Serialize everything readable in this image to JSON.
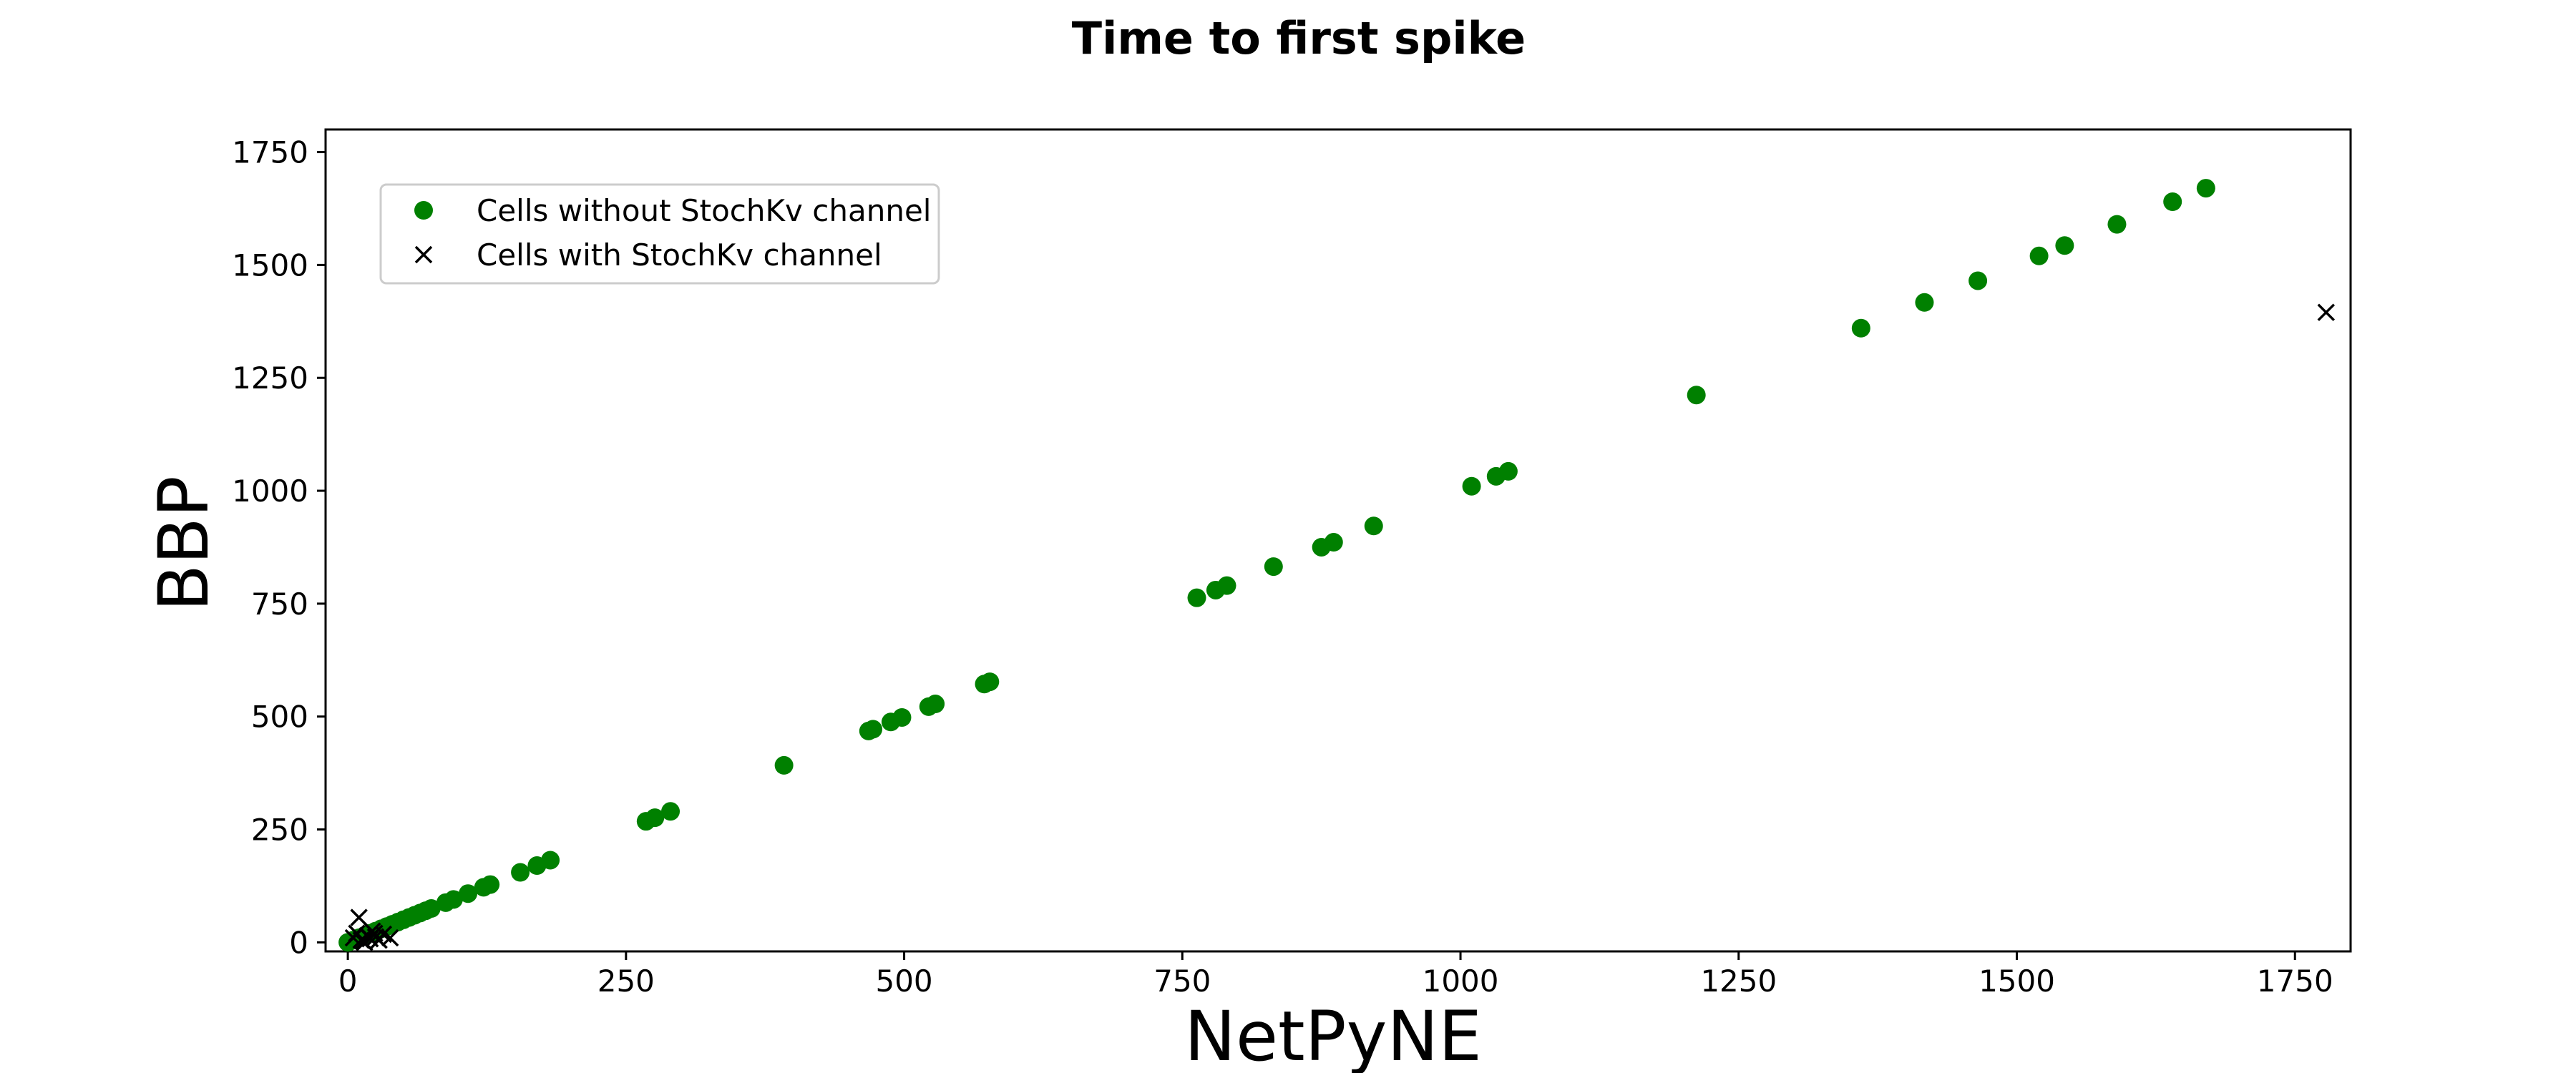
{
  "chart_data": {
    "type": "scatter",
    "title": "Time to first spike",
    "xlabel": "NetPyNE",
    "ylabel": "BBP",
    "xlim": [
      -20,
      1800
    ],
    "ylim": [
      -20,
      1800
    ],
    "xticks": [
      0,
      250,
      500,
      750,
      1000,
      1250,
      1500,
      1750
    ],
    "yticks": [
      0,
      250,
      500,
      750,
      1000,
      1250,
      1500,
      1750
    ],
    "grid": false,
    "legend_position": "top-left",
    "series": [
      {
        "name": "Cells without StochKv channel",
        "marker": "circle",
        "color": "#008000",
        "points": [
          [
            0,
            0
          ],
          [
            5,
            5
          ],
          [
            10,
            10
          ],
          [
            15,
            15
          ],
          [
            20,
            20
          ],
          [
            25,
            25
          ],
          [
            30,
            30
          ],
          [
            35,
            35
          ],
          [
            40,
            40
          ],
          [
            45,
            45
          ],
          [
            50,
            50
          ],
          [
            55,
            55
          ],
          [
            60,
            60
          ],
          [
            65,
            65
          ],
          [
            70,
            70
          ],
          [
            75,
            75
          ],
          [
            88,
            88
          ],
          [
            95,
            95
          ],
          [
            108,
            108
          ],
          [
            122,
            122
          ],
          [
            128,
            128
          ],
          [
            155,
            155
          ],
          [
            170,
            170
          ],
          [
            182,
            182
          ],
          [
            268,
            268
          ],
          [
            276,
            276
          ],
          [
            290,
            290
          ],
          [
            392,
            392
          ],
          [
            468,
            468
          ],
          [
            472,
            472
          ],
          [
            488,
            488
          ],
          [
            498,
            498
          ],
          [
            522,
            522
          ],
          [
            528,
            528
          ],
          [
            572,
            572
          ],
          [
            577,
            577
          ],
          [
            763,
            763
          ],
          [
            780,
            780
          ],
          [
            790,
            790
          ],
          [
            832,
            832
          ],
          [
            875,
            875
          ],
          [
            886,
            886
          ],
          [
            922,
            922
          ],
          [
            1010,
            1010
          ],
          [
            1032,
            1032
          ],
          [
            1043,
            1043
          ],
          [
            1212,
            1212
          ],
          [
            1360,
            1360
          ],
          [
            1417,
            1417
          ],
          [
            1465,
            1465
          ],
          [
            1520,
            1520
          ],
          [
            1543,
            1543
          ],
          [
            1590,
            1590
          ],
          [
            1640,
            1640
          ],
          [
            1670,
            1670
          ]
        ]
      },
      {
        "name": "Cells with StochKv channel",
        "marker": "x",
        "color": "#000000",
        "points": [
          [
            10,
            55
          ],
          [
            5,
            10
          ],
          [
            8,
            20
          ],
          [
            12,
            5
          ],
          [
            15,
            0
          ],
          [
            18,
            15
          ],
          [
            20,
            8
          ],
          [
            22,
            25
          ],
          [
            25,
            12
          ],
          [
            28,
            5
          ],
          [
            32,
            18
          ],
          [
            38,
            10
          ],
          [
            14,
            2
          ],
          [
            24,
            20
          ],
          [
            1778,
            1395
          ]
        ]
      }
    ]
  }
}
